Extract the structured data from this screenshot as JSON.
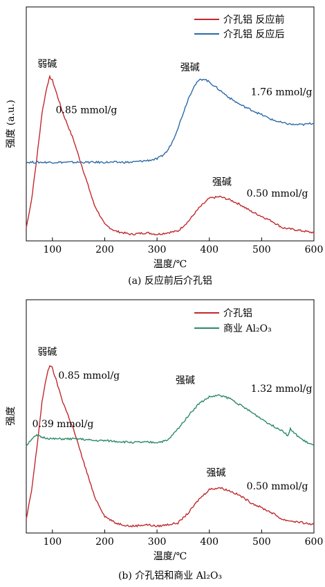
{
  "colors": {
    "red": "#c0282c",
    "blue": "#2b6aa6",
    "green": "#2a8a64",
    "axis": "#000000"
  },
  "chart_data": [
    {
      "type": "line",
      "caption": "(a) 反应前后介孔铝",
      "xlabel": "温度/℃",
      "ylabel": "强度 (a.u.)",
      "xlim": [
        50,
        600
      ],
      "xticks": [
        100,
        200,
        300,
        400,
        500,
        600
      ],
      "xtick_labels": [
        "100",
        "200",
        "300",
        "400",
        "500",
        "600"
      ],
      "grid": false,
      "legend": "top-right",
      "series": [
        {
          "name": "介孔铝 反应前",
          "color": "#c0282c",
          "x": [
            50,
            60,
            70,
            80,
            90,
            95,
            100,
            110,
            120,
            140,
            160,
            180,
            200,
            220,
            250,
            280,
            300,
            320,
            340,
            360,
            380,
            400,
            420,
            440,
            460,
            480,
            500,
            520,
            540,
            560,
            580,
            600
          ],
          "y": [
            0.08,
            0.25,
            0.5,
            0.78,
            0.95,
            1.0,
            0.98,
            0.88,
            0.78,
            0.62,
            0.42,
            0.22,
            0.1,
            0.06,
            0.04,
            0.05,
            0.04,
            0.05,
            0.06,
            0.12,
            0.2,
            0.26,
            0.27,
            0.25,
            0.22,
            0.18,
            0.15,
            0.12,
            0.08,
            0.07,
            0.06,
            0.05
          ]
        },
        {
          "name": "介孔铝 反应后",
          "color": "#2b6aa6",
          "x": [
            50,
            80,
            100,
            150,
            200,
            250,
            280,
            300,
            310,
            320,
            330,
            340,
            350,
            360,
            370,
            380,
            390,
            400,
            420,
            440,
            460,
            480,
            500,
            520,
            540,
            560,
            580,
            600
          ],
          "y": [
            0.48,
            0.48,
            0.48,
            0.48,
            0.48,
            0.48,
            0.49,
            0.5,
            0.52,
            0.55,
            0.61,
            0.69,
            0.78,
            0.87,
            0.94,
            0.98,
            0.99,
            0.97,
            0.92,
            0.87,
            0.83,
            0.8,
            0.77,
            0.74,
            0.72,
            0.71,
            0.71,
            0.72
          ]
        }
      ],
      "annotations": [
        {
          "text": "弱碱",
          "x": 90,
          "y": 1.06
        },
        {
          "text": "0.85 mmol/g",
          "x": 165,
          "y": 0.78
        },
        {
          "text": "强碱",
          "x": 424,
          "y": 0.34
        },
        {
          "text": "0.50 mmol/g",
          "x": 530,
          "y": 0.27
        },
        {
          "text": "强碱",
          "x": 363,
          "y": 1.04
        },
        {
          "text": "1.76 mmol/g",
          "x": 538,
          "y": 0.89
        }
      ]
    },
    {
      "type": "line",
      "caption": "(b) 介孔铝和商业 Al₂O₃",
      "xlabel": "温度/℃",
      "ylabel": "强度",
      "xlim": [
        50,
        600
      ],
      "xticks": [
        100,
        200,
        300,
        400,
        500,
        600
      ],
      "xtick_labels": [
        "100",
        "200",
        "300",
        "400",
        "500",
        "600"
      ],
      "grid": false,
      "legend": "top-right",
      "series": [
        {
          "name": "介孔铝",
          "color": "#c0282c",
          "x": [
            50,
            60,
            70,
            80,
            90,
            95,
            100,
            110,
            120,
            140,
            160,
            180,
            200,
            220,
            250,
            280,
            300,
            320,
            340,
            360,
            380,
            400,
            420,
            440,
            460,
            480,
            500,
            520,
            540,
            560,
            580,
            600
          ],
          "y": [
            0.08,
            0.25,
            0.5,
            0.78,
            0.95,
            1.0,
            0.98,
            0.88,
            0.78,
            0.62,
            0.42,
            0.22,
            0.1,
            0.06,
            0.04,
            0.05,
            0.04,
            0.05,
            0.06,
            0.12,
            0.2,
            0.26,
            0.27,
            0.25,
            0.22,
            0.18,
            0.15,
            0.12,
            0.08,
            0.07,
            0.06,
            0.05
          ]
        },
        {
          "name": "商业 Al₂O₃",
          "color": "#2a8a64",
          "x": [
            50,
            60,
            70,
            80,
            100,
            120,
            150,
            180,
            200,
            250,
            300,
            320,
            340,
            360,
            380,
            400,
            420,
            440,
            460,
            480,
            500,
            520,
            540,
            550,
            555,
            560,
            580,
            600
          ],
          "y": [
            0.52,
            0.56,
            0.58,
            0.57,
            0.56,
            0.56,
            0.56,
            0.55,
            0.55,
            0.54,
            0.54,
            0.55,
            0.62,
            0.7,
            0.77,
            0.81,
            0.82,
            0.8,
            0.76,
            0.72,
            0.68,
            0.64,
            0.61,
            0.58,
            0.62,
            0.6,
            0.55,
            0.52
          ]
        }
      ],
      "annotations": [
        {
          "text": "弱碱",
          "x": 90,
          "y": 1.06
        },
        {
          "text": "0.85 mmol/g",
          "x": 170,
          "y": 0.92
        },
        {
          "text": "0.39 mmol/g",
          "x": 120,
          "y": 0.63
        },
        {
          "text": "强碱",
          "x": 413,
          "y": 0.34
        },
        {
          "text": "0.50 mmol/g",
          "x": 530,
          "y": 0.26
        },
        {
          "text": "强碱",
          "x": 354,
          "y": 0.89
        },
        {
          "text": "1.32 mmol/g",
          "x": 538,
          "y": 0.84
        }
      ]
    }
  ]
}
